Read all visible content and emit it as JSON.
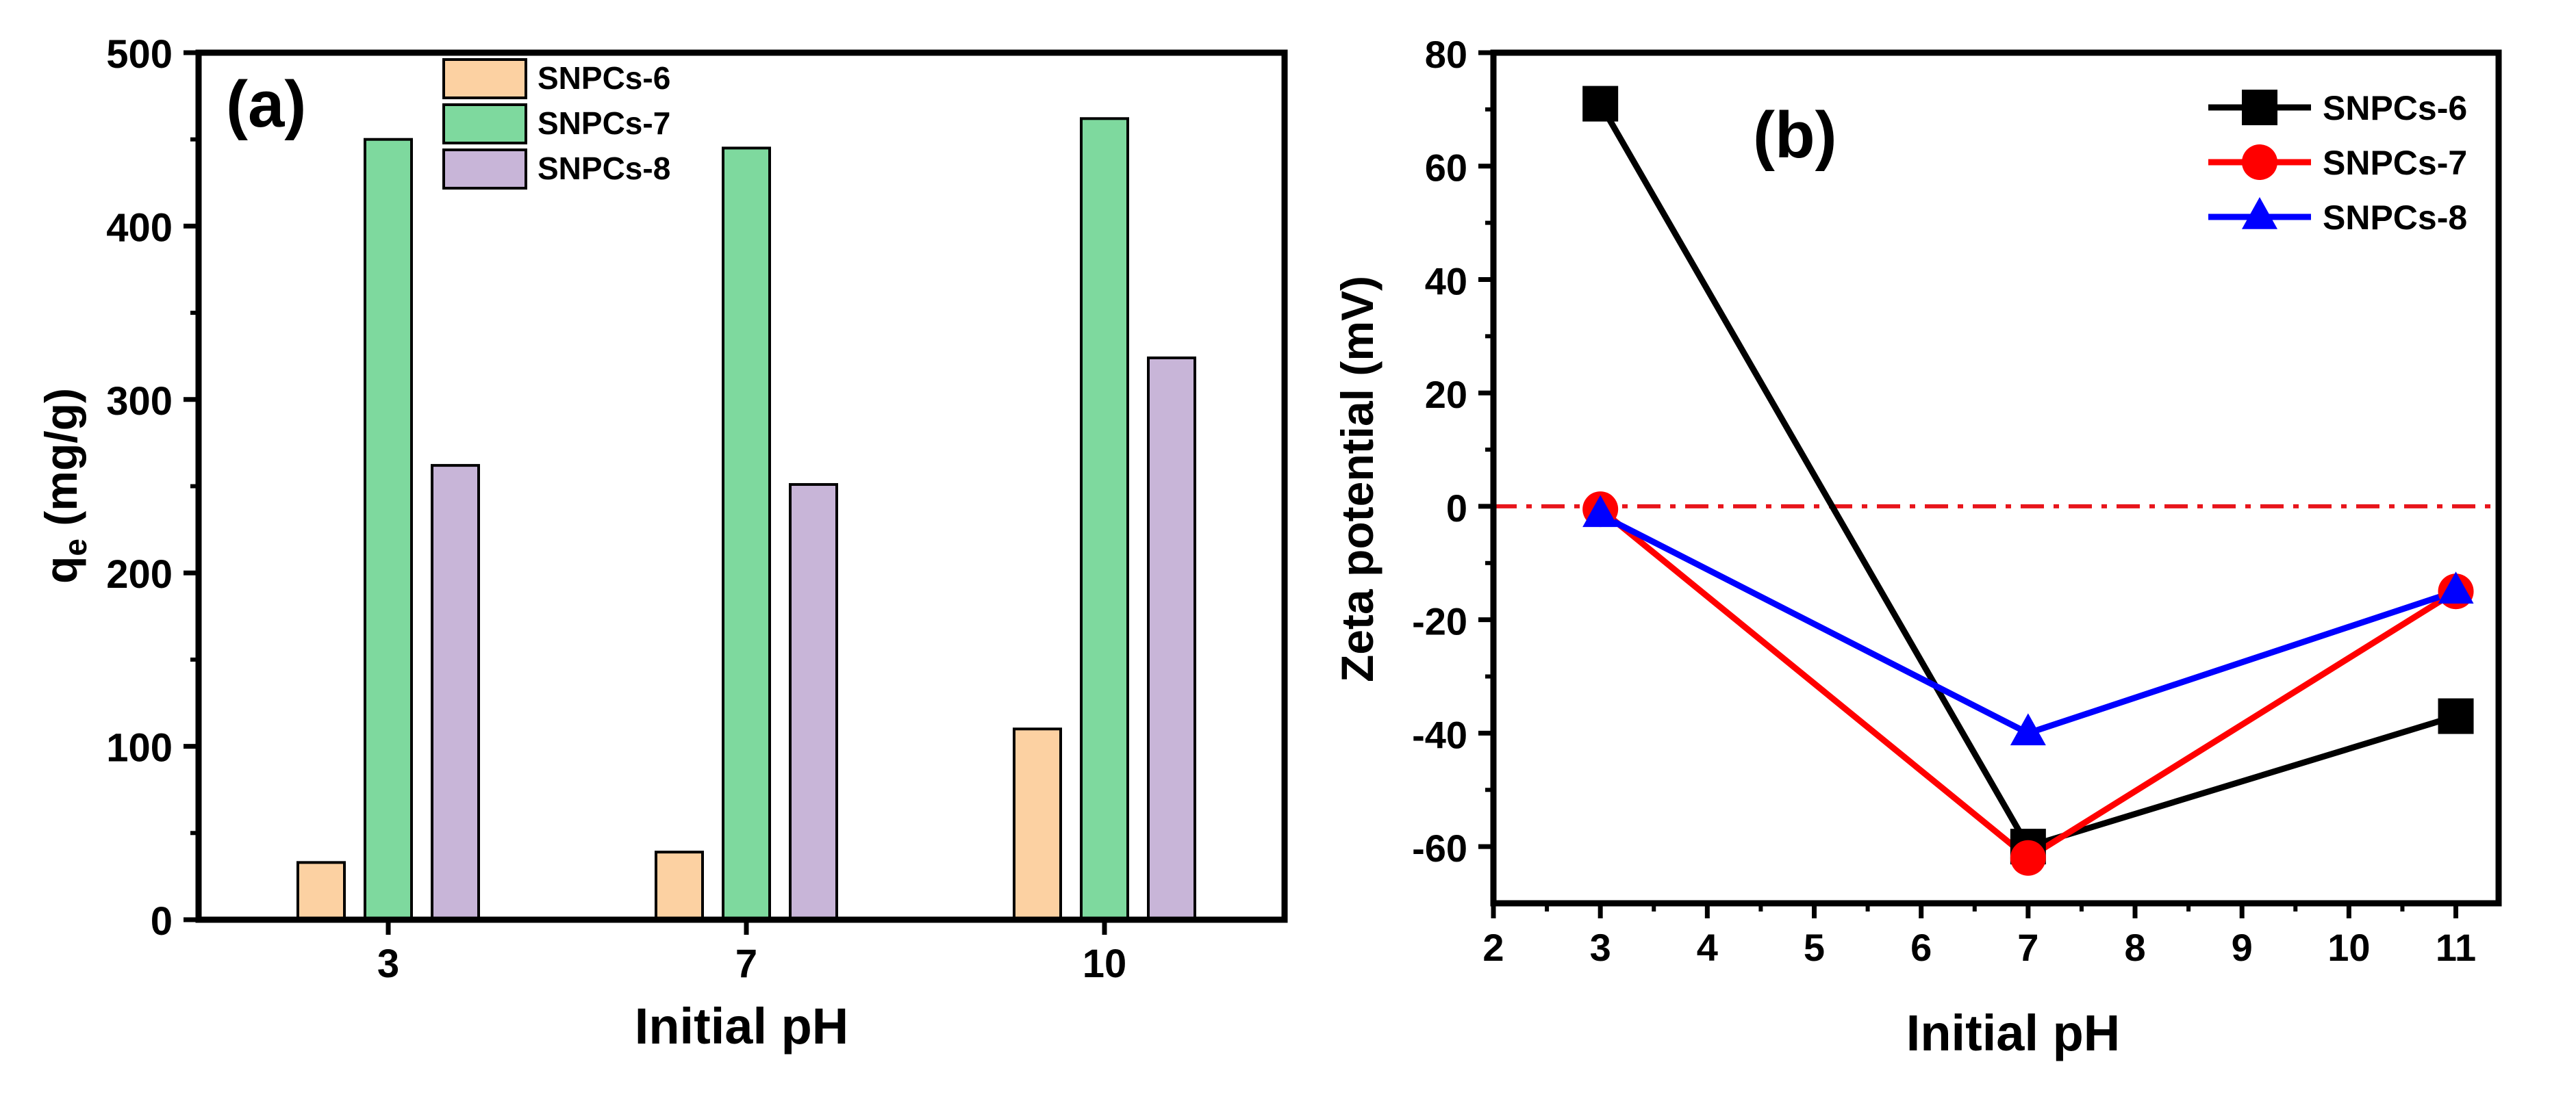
{
  "chart_data": [
    {
      "type": "bar",
      "panel_label": "(a)",
      "title": "",
      "xlabel": "Initial pH",
      "ylabel_main": "q",
      "ylabel_sub": "e",
      "ylabel_units": " (mg/g)",
      "categories": [
        "3",
        "7",
        "10"
      ],
      "ylim": [
        0,
        500
      ],
      "yticks": [
        0,
        100,
        200,
        300,
        400,
        500
      ],
      "legend_position": "top-center",
      "series": [
        {
          "name": "SNPCs-6",
          "color": "#fcd1a2",
          "values": [
            33,
            39,
            110
          ]
        },
        {
          "name": "SNPCs-7",
          "color": "#7ed99e",
          "values": [
            450,
            445,
            462
          ]
        },
        {
          "name": "SNPCs-8",
          "color": "#c8b5d8",
          "values": [
            262,
            251,
            324
          ]
        }
      ]
    },
    {
      "type": "line",
      "panel_label": "(b)",
      "title": "",
      "xlabel": "Initial pH",
      "ylabel": "Zeta potential (mV)",
      "xlim": [
        2,
        11.4
      ],
      "ylim": [
        -70,
        80
      ],
      "xticks": [
        2,
        3,
        4,
        5,
        6,
        7,
        8,
        9,
        10,
        11
      ],
      "yticks": [
        -60,
        -40,
        -20,
        0,
        20,
        40,
        60,
        80
      ],
      "reference_line": {
        "y": 0,
        "color": "#e8151b",
        "style": "dash-dot"
      },
      "legend_position": "top-right",
      "series": [
        {
          "name": "SNPCs-6",
          "color": "#000000",
          "marker": "square",
          "x": [
            3,
            7,
            11
          ],
          "y": [
            71,
            -60,
            -37
          ]
        },
        {
          "name": "SNPCs-7",
          "color": "#ff0000",
          "marker": "circle",
          "x": [
            3,
            7,
            11
          ],
          "y": [
            -0.5,
            -62,
            -15
          ]
        },
        {
          "name": "SNPCs-8",
          "color": "#0000ff",
          "marker": "triangle",
          "x": [
            3,
            7,
            11
          ],
          "y": [
            -1.5,
            -40,
            -15
          ]
        }
      ]
    }
  ]
}
